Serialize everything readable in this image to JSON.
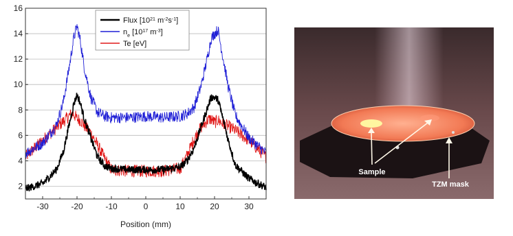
{
  "chart_data": {
    "type": "line",
    "xlabel": "Position (mm)",
    "ylabel": "",
    "xlim": [
      -35,
      35
    ],
    "ylim": [
      1,
      16
    ],
    "x_ticks": [
      -30,
      -20,
      -10,
      0,
      10,
      20,
      30
    ],
    "y_ticks": [
      2,
      4,
      6,
      8,
      10,
      12,
      14,
      16
    ],
    "grid": "horizontal",
    "legend_position": "top-center",
    "x": [
      -35,
      -30,
      -26,
      -24,
      -22,
      -21,
      -20,
      -19,
      -18,
      -16,
      -14,
      -12,
      -10,
      -5,
      0,
      5,
      10,
      12,
      14,
      16,
      18,
      19,
      20,
      21,
      22,
      24,
      26,
      30,
      35
    ],
    "series": [
      {
        "name_html": "Flux [10<tspan baseline-shift='super' font-size='7'>21</tspan> m<tspan baseline-shift='super' font-size='7'>-2</tspan>s<tspan baseline-shift='super' font-size='7'>-1</tspan>]",
        "color": "#000000",
        "noise": 0.3,
        "values": [
          1.8,
          2.2,
          3.3,
          4.7,
          7.2,
          8.4,
          9.2,
          8.5,
          7.4,
          5.8,
          4.3,
          3.6,
          3.4,
          3.3,
          3.3,
          3.3,
          3.5,
          4.0,
          5.0,
          6.6,
          8.2,
          9.0,
          9.0,
          8.8,
          7.8,
          5.6,
          3.7,
          2.6,
          1.9
        ]
      },
      {
        "name_html": "n<tspan baseline-shift='sub' font-size='7'>e</tspan> [10<tspan baseline-shift='super' font-size='7'>17</tspan> m<tspan baseline-shift='super' font-size='7'>-3</tspan>]",
        "color": "#1f1fd6",
        "noise": 0.45,
        "values": [
          4.6,
          5.4,
          6.8,
          8.6,
          11.8,
          13.6,
          14.6,
          13.4,
          11.5,
          9.0,
          7.8,
          7.5,
          7.4,
          7.4,
          7.5,
          7.4,
          7.5,
          7.7,
          8.2,
          9.8,
          12.2,
          13.6,
          14.0,
          14.3,
          12.8,
          9.8,
          7.6,
          5.8,
          4.6
        ]
      },
      {
        "name": "Te [eV]",
        "color": "#e01818",
        "noise": 0.5,
        "values": [
          4.3,
          5.6,
          6.6,
          7.1,
          7.6,
          7.7,
          7.3,
          7.2,
          6.8,
          6.2,
          5.2,
          4.2,
          3.3,
          3.2,
          3.2,
          3.2,
          3.4,
          4.4,
          5.7,
          6.6,
          7.2,
          7.3,
          7.0,
          7.2,
          7.0,
          6.7,
          6.4,
          5.6,
          4.3
        ]
      }
    ]
  },
  "photo": {
    "labels": {
      "sample": "Sample",
      "mask": "TZM mask"
    }
  }
}
